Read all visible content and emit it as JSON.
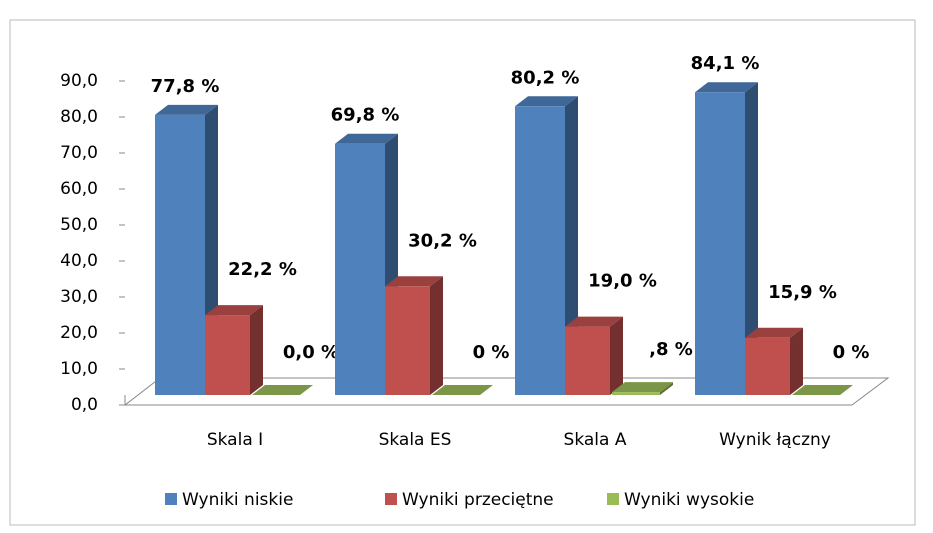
{
  "chart_data": {
    "type": "bar3d",
    "categories": [
      "Skala I",
      "Skala ES",
      "Skala A",
      "Wynik łączny"
    ],
    "series": [
      {
        "name": "Wyniki niskie",
        "color": "#4f81bd",
        "values": [
          77.8,
          69.8,
          80.2,
          84.1
        ],
        "value_labels": [
          "77,8 %",
          "69,8 %",
          "80,2 %",
          "84,1 %"
        ]
      },
      {
        "name": "Wyniki przeciętne",
        "color": "#c0504d",
        "values": [
          22.2,
          30.2,
          19.0,
          15.9
        ],
        "value_labels": [
          "22,2 %",
          "30,2 %",
          "19,0 %",
          "15,9 %"
        ]
      },
      {
        "name": "Wyniki wysokie",
        "color": "#9bbb59",
        "values": [
          0.0,
          0,
          0.8,
          0
        ],
        "value_labels": [
          "0,0 %",
          "0 %",
          ",8 %",
          "0 %"
        ]
      }
    ],
    "ylim": [
      0,
      90
    ],
    "yticks": [
      {
        "value": 0,
        "label": "0,0"
      },
      {
        "value": 10,
        "label": "10,0"
      },
      {
        "value": 20,
        "label": "20,0"
      },
      {
        "value": 30,
        "label": "30,0"
      },
      {
        "value": 40,
        "label": "40,0"
      },
      {
        "value": 50,
        "label": "50,0"
      },
      {
        "value": 60,
        "label": "60,0"
      },
      {
        "value": 70,
        "label": "70,0"
      },
      {
        "value": 80,
        "label": "80,0"
      },
      {
        "value": 90,
        "label": "90,0"
      }
    ],
    "legend": "bottom"
  }
}
